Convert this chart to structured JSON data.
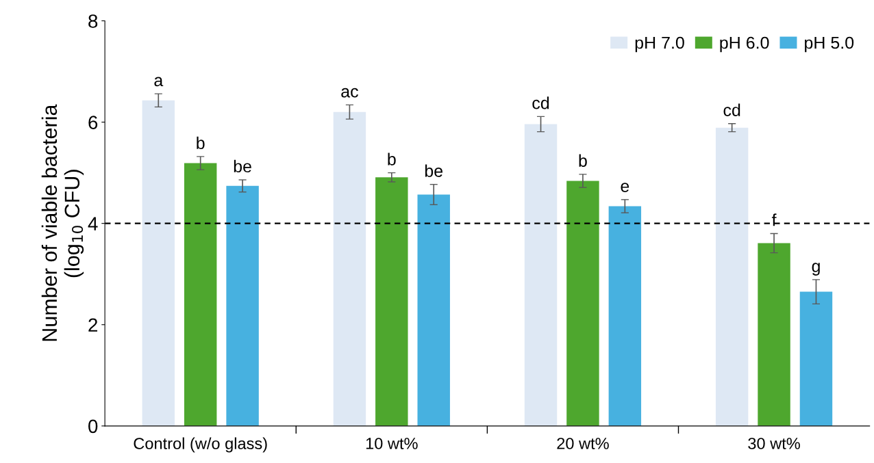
{
  "chart_data": {
    "type": "bar",
    "categories": [
      "Control (w/o glass)",
      "10 wt%",
      "20 wt%",
      "30 wt%"
    ],
    "ylabel": "Number of viable bacteria\n(log$_{10}$ CFU)",
    "ylim": [
      0,
      8
    ],
    "yticks": [
      0,
      2,
      4,
      6,
      8
    ],
    "series": [
      {
        "name": "pH 7.0",
        "color": "#dee8f4",
        "values": [
          6.43,
          6.2,
          5.96,
          5.89
        ],
        "errors": [
          0.13,
          0.14,
          0.15,
          0.08
        ],
        "value_labels": [
          "a",
          "ac",
          "cd",
          "cd"
        ]
      },
      {
        "name": "pH 6.0",
        "color": "#4ea72e",
        "values": [
          5.19,
          4.91,
          4.84,
          3.61
        ],
        "errors": [
          0.13,
          0.09,
          0.13,
          0.19
        ],
        "value_labels": [
          "b",
          "b",
          "b",
          "f"
        ]
      },
      {
        "name": "pH 5.0",
        "color": "#47b1e0",
        "values": [
          4.74,
          4.57,
          4.34,
          2.65
        ],
        "errors": [
          0.12,
          0.2,
          0.13,
          0.24
        ],
        "value_labels": [
          "be",
          "be",
          "e",
          "g"
        ]
      }
    ],
    "ref_lines": [
      {
        "axis": "y",
        "value": 4,
        "line_style": "dashed",
        "color": "#000000"
      }
    ],
    "grid": false,
    "legend": "top right"
  }
}
